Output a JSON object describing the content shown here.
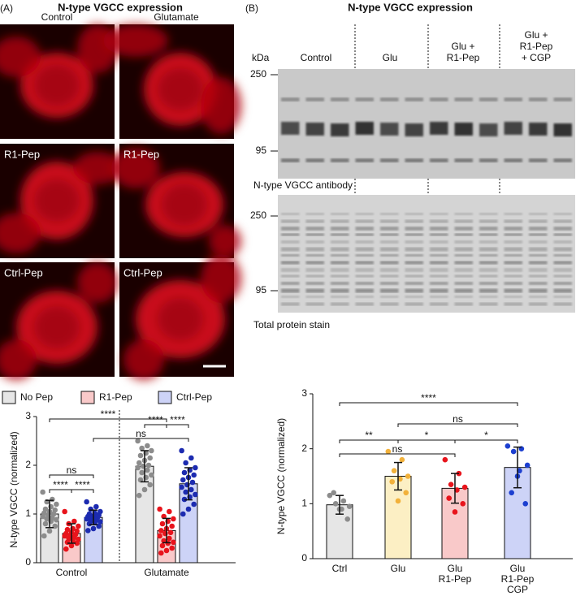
{
  "panel_a": {
    "label": "(A)",
    "title": "N-type VGCC expression",
    "columns": [
      "Control",
      "Glutamate"
    ],
    "image_labels": [
      "R1-Pep",
      "Ctrl-Pep"
    ]
  },
  "panel_b": {
    "label": "(B)",
    "title": "N-type VGCC expression",
    "unit": "kDa",
    "groups": [
      [
        "Control"
      ],
      [
        "Glu"
      ],
      [
        "Glu +",
        "R1-Pep"
      ],
      [
        "Glu +",
        "R1-Pep",
        "+ CGP"
      ]
    ],
    "markers": [
      250,
      95
    ],
    "blot_labels": [
      "N-type VGCC antibody",
      "Total protein stain"
    ]
  },
  "chart_data": [
    {
      "type": "bar",
      "ylabel": "N-type VGCC (normalized)",
      "categories": [
        "Control",
        "Glutamate"
      ],
      "ylim": [
        0,
        3
      ],
      "yticks": [
        0,
        1,
        2,
        3
      ],
      "legend": "top",
      "series": [
        {
          "name": "No Pep",
          "color": "#e6e6e6",
          "point_color": "#8c8c8c",
          "values": [
            1.0,
            1.98
          ],
          "errors": [
            0.28,
            0.32
          ],
          "points": [
            [
              1.45,
              1.3,
              1.25,
              1.2,
              1.15,
              1.1,
              1.08,
              1.05,
              1.02,
              1.0,
              0.98,
              0.95,
              0.92,
              0.9,
              0.88,
              0.85,
              0.8,
              0.75,
              0.65,
              0.55
            ],
            [
              2.5,
              2.4,
              2.35,
              2.3,
              2.25,
              2.2,
              2.15,
              2.1,
              2.05,
              2.0,
              1.98,
              1.95,
              1.9,
              1.85,
              1.8,
              1.75,
              1.7,
              1.6,
              1.5,
              1.38
            ]
          ]
        },
        {
          "name": "R1-Pep",
          "color": "#f9c9c9",
          "point_color": "#e8141c",
          "values": [
            0.6,
            0.66
          ],
          "errors": [
            0.2,
            0.25
          ],
          "points": [
            [
              1.05,
              0.85,
              0.8,
              0.75,
              0.7,
              0.68,
              0.65,
              0.62,
              0.6,
              0.58,
              0.56,
              0.55,
              0.52,
              0.5,
              0.48,
              0.45,
              0.42,
              0.4,
              0.35,
              0.28
            ],
            [
              1.1,
              1.05,
              0.95,
              0.9,
              0.85,
              0.8,
              0.75,
              0.7,
              0.66,
              0.62,
              0.6,
              0.55,
              0.5,
              0.45,
              0.42,
              0.4,
              0.35,
              0.3,
              0.25,
              0.2
            ]
          ]
        },
        {
          "name": "Ctrl-Pep",
          "color": "#cdd3f7",
          "point_color": "#1c2bb0",
          "values": [
            0.93,
            1.62
          ],
          "errors": [
            0.15,
            0.33
          ],
          "points": [
            [
              1.25,
              1.15,
              1.1,
              1.05,
              1.02,
              1.0,
              0.98,
              0.96,
              0.95,
              0.93,
              0.92,
              0.9,
              0.88,
              0.86,
              0.84,
              0.82,
              0.8,
              0.75,
              0.7,
              0.66
            ],
            [
              2.3,
              2.15,
              2.05,
              1.95,
              1.9,
              1.85,
              1.8,
              1.75,
              1.7,
              1.65,
              1.6,
              1.55,
              1.5,
              1.45,
              1.4,
              1.35,
              1.3,
              1.2,
              1.1,
              1.0
            ]
          ]
        }
      ],
      "comparisons": [
        {
          "bars": [
            0,
            4
          ],
          "label": "****"
        },
        {
          "bars": [
            3,
            4
          ],
          "label": "****"
        },
        {
          "bars": [
            4,
            5
          ],
          "label": "****"
        },
        {
          "bars": [
            2,
            5
          ],
          "label": "ns"
        },
        {
          "bars": [
            0,
            2
          ],
          "label": "ns"
        },
        {
          "bars": [
            0,
            1
          ],
          "label": "****"
        },
        {
          "bars": [
            1,
            2
          ],
          "label": "****"
        }
      ]
    },
    {
      "type": "bar",
      "ylabel": "N-type VGCC (normalized)",
      "categories": [
        [
          "Ctrl"
        ],
        [
          "Glu"
        ],
        [
          "Glu",
          "R1-Pep"
        ],
        [
          "Glu",
          "R1-Pep",
          "CGP"
        ]
      ],
      "ylim": [
        0,
        3
      ],
      "yticks": [
        0,
        1,
        2,
        3
      ],
      "colors": [
        "#e6e6e6",
        "#fcefc4",
        "#f9c9c9",
        "#cdd3f7"
      ],
      "point_colors": [
        "#8c8c8c",
        "#f2b13a",
        "#e8141c",
        "#1c3fd0"
      ],
      "values": [
        0.98,
        1.5,
        1.28,
        1.66
      ],
      "errors": [
        0.17,
        0.25,
        0.27,
        0.37
      ],
      "points": [
        [
          1.15,
          1.05,
          1.0,
          0.95,
          0.9,
          1.2,
          0.72,
          0.9
        ],
        [
          1.95,
          1.8,
          1.6,
          1.5,
          1.45,
          1.4,
          1.2,
          1.05
        ],
        [
          1.8,
          1.55,
          1.35,
          1.3,
          1.25,
          1.1,
          1.0,
          0.85
        ],
        [
          2.05,
          2.0,
          1.95,
          1.7,
          1.6,
          1.2,
          1.0,
          1.5
        ]
      ],
      "comparisons": [
        {
          "bars": [
            0,
            3
          ],
          "label": "****"
        },
        {
          "bars": [
            1,
            3
          ],
          "label": "ns"
        },
        {
          "bars": [
            0,
            1
          ],
          "label": "**"
        },
        {
          "bars": [
            1,
            2
          ],
          "label": "*"
        },
        {
          "bars": [
            2,
            3
          ],
          "label": "*"
        },
        {
          "bars": [
            0,
            2
          ],
          "label": "ns"
        }
      ]
    }
  ]
}
